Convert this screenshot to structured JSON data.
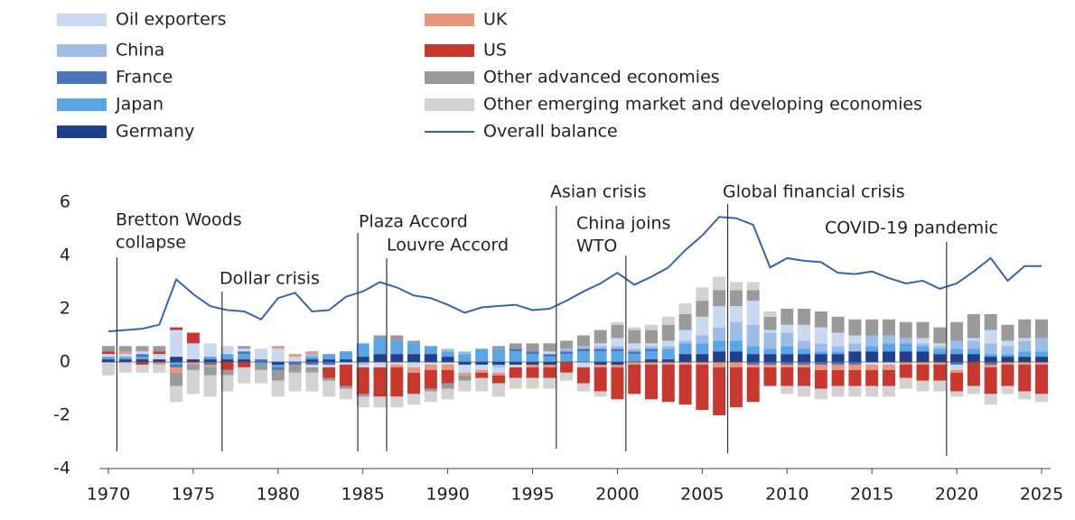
{
  "chart_data": {
    "type": "stacked_bar_line",
    "x": [
      1970,
      1971,
      1972,
      1973,
      1974,
      1975,
      1976,
      1977,
      1978,
      1979,
      1980,
      1981,
      1982,
      1983,
      1984,
      1985,
      1986,
      1987,
      1988,
      1989,
      1990,
      1991,
      1992,
      1993,
      1994,
      1995,
      1996,
      1997,
      1998,
      1999,
      2000,
      2001,
      2002,
      2003,
      2004,
      2005,
      2006,
      2007,
      2008,
      2009,
      2010,
      2011,
      2012,
      2013,
      2014,
      2015,
      2016,
      2017,
      2018,
      2019,
      2020,
      2021,
      2022,
      2023,
      2024,
      2025
    ],
    "series": [
      {
        "name": "Oil exporters",
        "color": "#c9d9ef",
        "values": [
          0.1,
          0.1,
          0.1,
          0.2,
          1.0,
          0.6,
          0.5,
          0.3,
          0.1,
          0.4,
          0.5,
          0.2,
          -0.1,
          -0.1,
          -0.1,
          -0.1,
          -0.2,
          -0.1,
          -0.2,
          -0.1,
          -0.1,
          -0.3,
          -0.2,
          -0.2,
          -0.1,
          0,
          0.1,
          0,
          -0.2,
          0.1,
          0.3,
          0.2,
          0.1,
          0.2,
          0.4,
          0.7,
          0.8,
          0.6,
          0.9,
          0.1,
          0.3,
          0.6,
          0.6,
          0.5,
          0.3,
          -0.1,
          -0.1,
          0,
          0.2,
          0.1,
          -0.2,
          0.1,
          0.5,
          0.2,
          0.1,
          0
        ]
      },
      {
        "name": "China",
        "color": "#9dbde6",
        "values": [
          0,
          0,
          0,
          0,
          0,
          0,
          0,
          0,
          0,
          0,
          0,
          0,
          0.1,
          0,
          0,
          -0.1,
          0,
          0,
          0,
          0,
          0.1,
          0.1,
          0,
          -0.1,
          0,
          0,
          0,
          0.1,
          0.1,
          0.1,
          0.1,
          0.1,
          0.1,
          0.1,
          0.1,
          0.3,
          0.5,
          0.7,
          0.8,
          0.6,
          0.5,
          0.3,
          0.3,
          0.2,
          0.3,
          0.4,
          0.3,
          0.2,
          0.1,
          0.1,
          0.3,
          0.3,
          0.4,
          0.3,
          0.4,
          0.5
        ]
      },
      {
        "name": "France",
        "color": "#4f73b8",
        "values": [
          0,
          0,
          0.1,
          0,
          -0.1,
          0,
          -0.1,
          0,
          0.1,
          0.1,
          -0.1,
          -0.1,
          -0.1,
          -0.1,
          0,
          0,
          0,
          0,
          0,
          0,
          0,
          0,
          0,
          0,
          0.1,
          0.1,
          0.1,
          0.1,
          0.1,
          0.1,
          0.1,
          0.1,
          0.1,
          0,
          0,
          0,
          0,
          0,
          -0.1,
          -0.1,
          -0.1,
          -0.1,
          -0.1,
          -0.1,
          -0.1,
          0,
          0,
          0,
          0,
          0,
          -0.1,
          0,
          -0.1,
          0,
          0,
          0
        ]
      },
      {
        "name": "Japan",
        "color": "#5aa5e6",
        "values": [
          0.1,
          0.1,
          0.1,
          0,
          -0.1,
          0,
          0.1,
          0.2,
          0.2,
          -0.1,
          -0.1,
          0,
          0.1,
          0.2,
          0.3,
          0.5,
          0.6,
          0.5,
          0.4,
          0.3,
          0.2,
          0.3,
          0.5,
          0.5,
          0.4,
          0.3,
          0.2,
          0.3,
          0.4,
          0.4,
          0.4,
          0.3,
          0.3,
          0.4,
          0.4,
          0.4,
          0.4,
          0.4,
          0.3,
          0.2,
          0.3,
          0.2,
          0.1,
          0.1,
          0,
          0.2,
          0.3,
          0.3,
          0.2,
          0.2,
          0.2,
          0.2,
          0.1,
          0.1,
          0.2,
          0.2
        ]
      },
      {
        "name": "Germany",
        "color": "#1f3f8f",
        "values": [
          0.1,
          0.1,
          0.1,
          0.1,
          0.2,
          0.1,
          0.1,
          0.1,
          0.1,
          0,
          -0.1,
          0,
          0.1,
          0.1,
          0.1,
          0.2,
          0.3,
          0.3,
          0.3,
          0.3,
          0.2,
          -0.1,
          -0.1,
          -0.1,
          -0.1,
          -0.1,
          -0.1,
          0,
          0,
          -0.1,
          -0.1,
          0,
          0.1,
          0.1,
          0.3,
          0.3,
          0.4,
          0.4,
          0.3,
          0.3,
          0.3,
          0.3,
          0.3,
          0.3,
          0.4,
          0.4,
          0.4,
          0.4,
          0.4,
          0.3,
          0.3,
          0.3,
          0.2,
          0.2,
          0.2,
          0.2
        ]
      },
      {
        "name": "UK",
        "color": "#e8967e",
        "values": [
          0,
          0.1,
          0,
          -0.1,
          -0.2,
          -0.1,
          -0.1,
          0,
          0,
          0,
          0.1,
          0.1,
          0.1,
          0,
          0,
          0,
          0,
          -0.1,
          -0.2,
          -0.2,
          -0.2,
          -0.1,
          -0.1,
          -0.1,
          0,
          -0.1,
          -0.1,
          0,
          0,
          -0.1,
          -0.1,
          -0.1,
          -0.1,
          -0.1,
          -0.1,
          -0.1,
          -0.2,
          -0.2,
          -0.1,
          -0.1,
          -0.1,
          -0.1,
          -0.2,
          -0.2,
          -0.2,
          -0.2,
          -0.2,
          -0.1,
          -0.1,
          -0.1,
          -0.1,
          0,
          -0.1,
          -0.1,
          -0.1,
          -0.1
        ]
      },
      {
        "name": "US",
        "color": "#c8382e",
        "values": [
          0.1,
          0,
          -0.1,
          0.1,
          0.1,
          0.4,
          0,
          -0.3,
          -0.2,
          0,
          0,
          0,
          0,
          -0.4,
          -0.8,
          -1.0,
          -1.1,
          -1.1,
          -0.8,
          -0.7,
          -0.5,
          0,
          -0.2,
          -0.3,
          -0.4,
          -0.4,
          -0.4,
          -0.4,
          -0.6,
          -0.9,
          -1.2,
          -1.1,
          -1.3,
          -1.4,
          -1.5,
          -1.7,
          -1.8,
          -1.5,
          -1.3,
          -0.7,
          -0.7,
          -0.7,
          -0.7,
          -0.6,
          -0.6,
          -0.6,
          -0.6,
          -0.5,
          -0.6,
          -0.6,
          -0.7,
          -0.9,
          -1.0,
          -0.8,
          -1.0,
          -1.1
        ]
      },
      {
        "name": "Other advanced economies",
        "color": "#9a9a9a",
        "values": [
          0.2,
          0.2,
          0.2,
          0.2,
          -0.5,
          -0.2,
          -0.3,
          -0.2,
          0.1,
          -0.2,
          -0.4,
          -0.3,
          -0.2,
          -0.1,
          -0.1,
          -0.1,
          0.1,
          0.2,
          0.1,
          -0.1,
          -0.2,
          -0.2,
          0,
          0.1,
          0.2,
          0.3,
          0.3,
          0.3,
          0.4,
          0.5,
          0.5,
          0.5,
          0.5,
          0.6,
          0.6,
          0.6,
          0.6,
          0.6,
          0.4,
          0.5,
          0.6,
          0.6,
          0.6,
          0.6,
          0.6,
          0.6,
          0.6,
          0.6,
          0.6,
          0.6,
          0.7,
          0.9,
          0.6,
          0.6,
          0.7,
          0.7
        ]
      },
      {
        "name": "Other emerging market and developing economies",
        "color": "#d2d2d2",
        "values": [
          -0.5,
          -0.4,
          -0.3,
          -0.3,
          -0.6,
          -0.9,
          -0.8,
          -0.6,
          -0.6,
          -0.5,
          -0.6,
          -0.7,
          -0.7,
          -0.6,
          -0.4,
          -0.4,
          -0.4,
          -0.4,
          -0.4,
          -0.4,
          -0.4,
          -0.4,
          -0.5,
          -0.5,
          -0.4,
          -0.4,
          -0.4,
          -0.3,
          -0.3,
          -0.2,
          0.1,
          0.1,
          0.2,
          0.3,
          0.4,
          0.5,
          0.5,
          0.3,
          0.3,
          0.2,
          -0.3,
          -0.4,
          -0.4,
          -0.4,
          -0.4,
          -0.4,
          -0.4,
          -0.4,
          -0.4,
          -0.4,
          -0.2,
          -0.3,
          -0.4,
          -0.3,
          -0.3,
          -0.3
        ]
      },
      {
        "name": "Overall balance",
        "color": "#3b63a8",
        "type": "line",
        "values": [
          1.15,
          1.2,
          1.25,
          1.4,
          3.1,
          2.55,
          2.1,
          1.95,
          1.9,
          1.6,
          2.4,
          2.6,
          1.9,
          1.95,
          2.45,
          2.65,
          3.0,
          2.8,
          2.5,
          2.4,
          2.15,
          1.85,
          2.05,
          2.1,
          2.15,
          1.95,
          2.0,
          2.3,
          2.65,
          2.95,
          3.35,
          2.9,
          3.2,
          3.55,
          4.2,
          4.75,
          5.45,
          5.4,
          5.15,
          3.55,
          3.9,
          3.8,
          3.75,
          3.35,
          3.3,
          3.4,
          3.15,
          2.95,
          3.05,
          2.75,
          2.95,
          3.4,
          3.9,
          3.05,
          3.6,
          3.6
        ]
      }
    ],
    "xlim": [
      1970,
      2025
    ],
    "xticks": [
      1970,
      1975,
      1980,
      1985,
      1990,
      1995,
      2000,
      2005,
      2010,
      2015,
      2020,
      2025
    ],
    "ylim": [
      -4,
      6
    ],
    "yticks": [
      6,
      4,
      2,
      0,
      -2,
      -4
    ],
    "annotations": [
      {
        "lines": [
          "Bretton Woods",
          "collapse"
        ],
        "x": 1970.5
      },
      {
        "lines": [
          "Dollar crisis"
        ],
        "x": 1976.7
      },
      {
        "lines": [
          "Plaza Accord"
        ],
        "x": 1984.7
      },
      {
        "lines": [
          "Louvre Accord"
        ],
        "x": 1986.4
      },
      {
        "lines": [
          "Asian crisis"
        ],
        "x": 1996.4
      },
      {
        "lines": [
          "China joins",
          "WTO"
        ],
        "x": 2000.5
      },
      {
        "lines": [
          "Global financial crisis"
        ],
        "x": 2006.5
      },
      {
        "lines": [
          "COVID-19 pandemic"
        ],
        "x": 2019.4
      }
    ]
  }
}
